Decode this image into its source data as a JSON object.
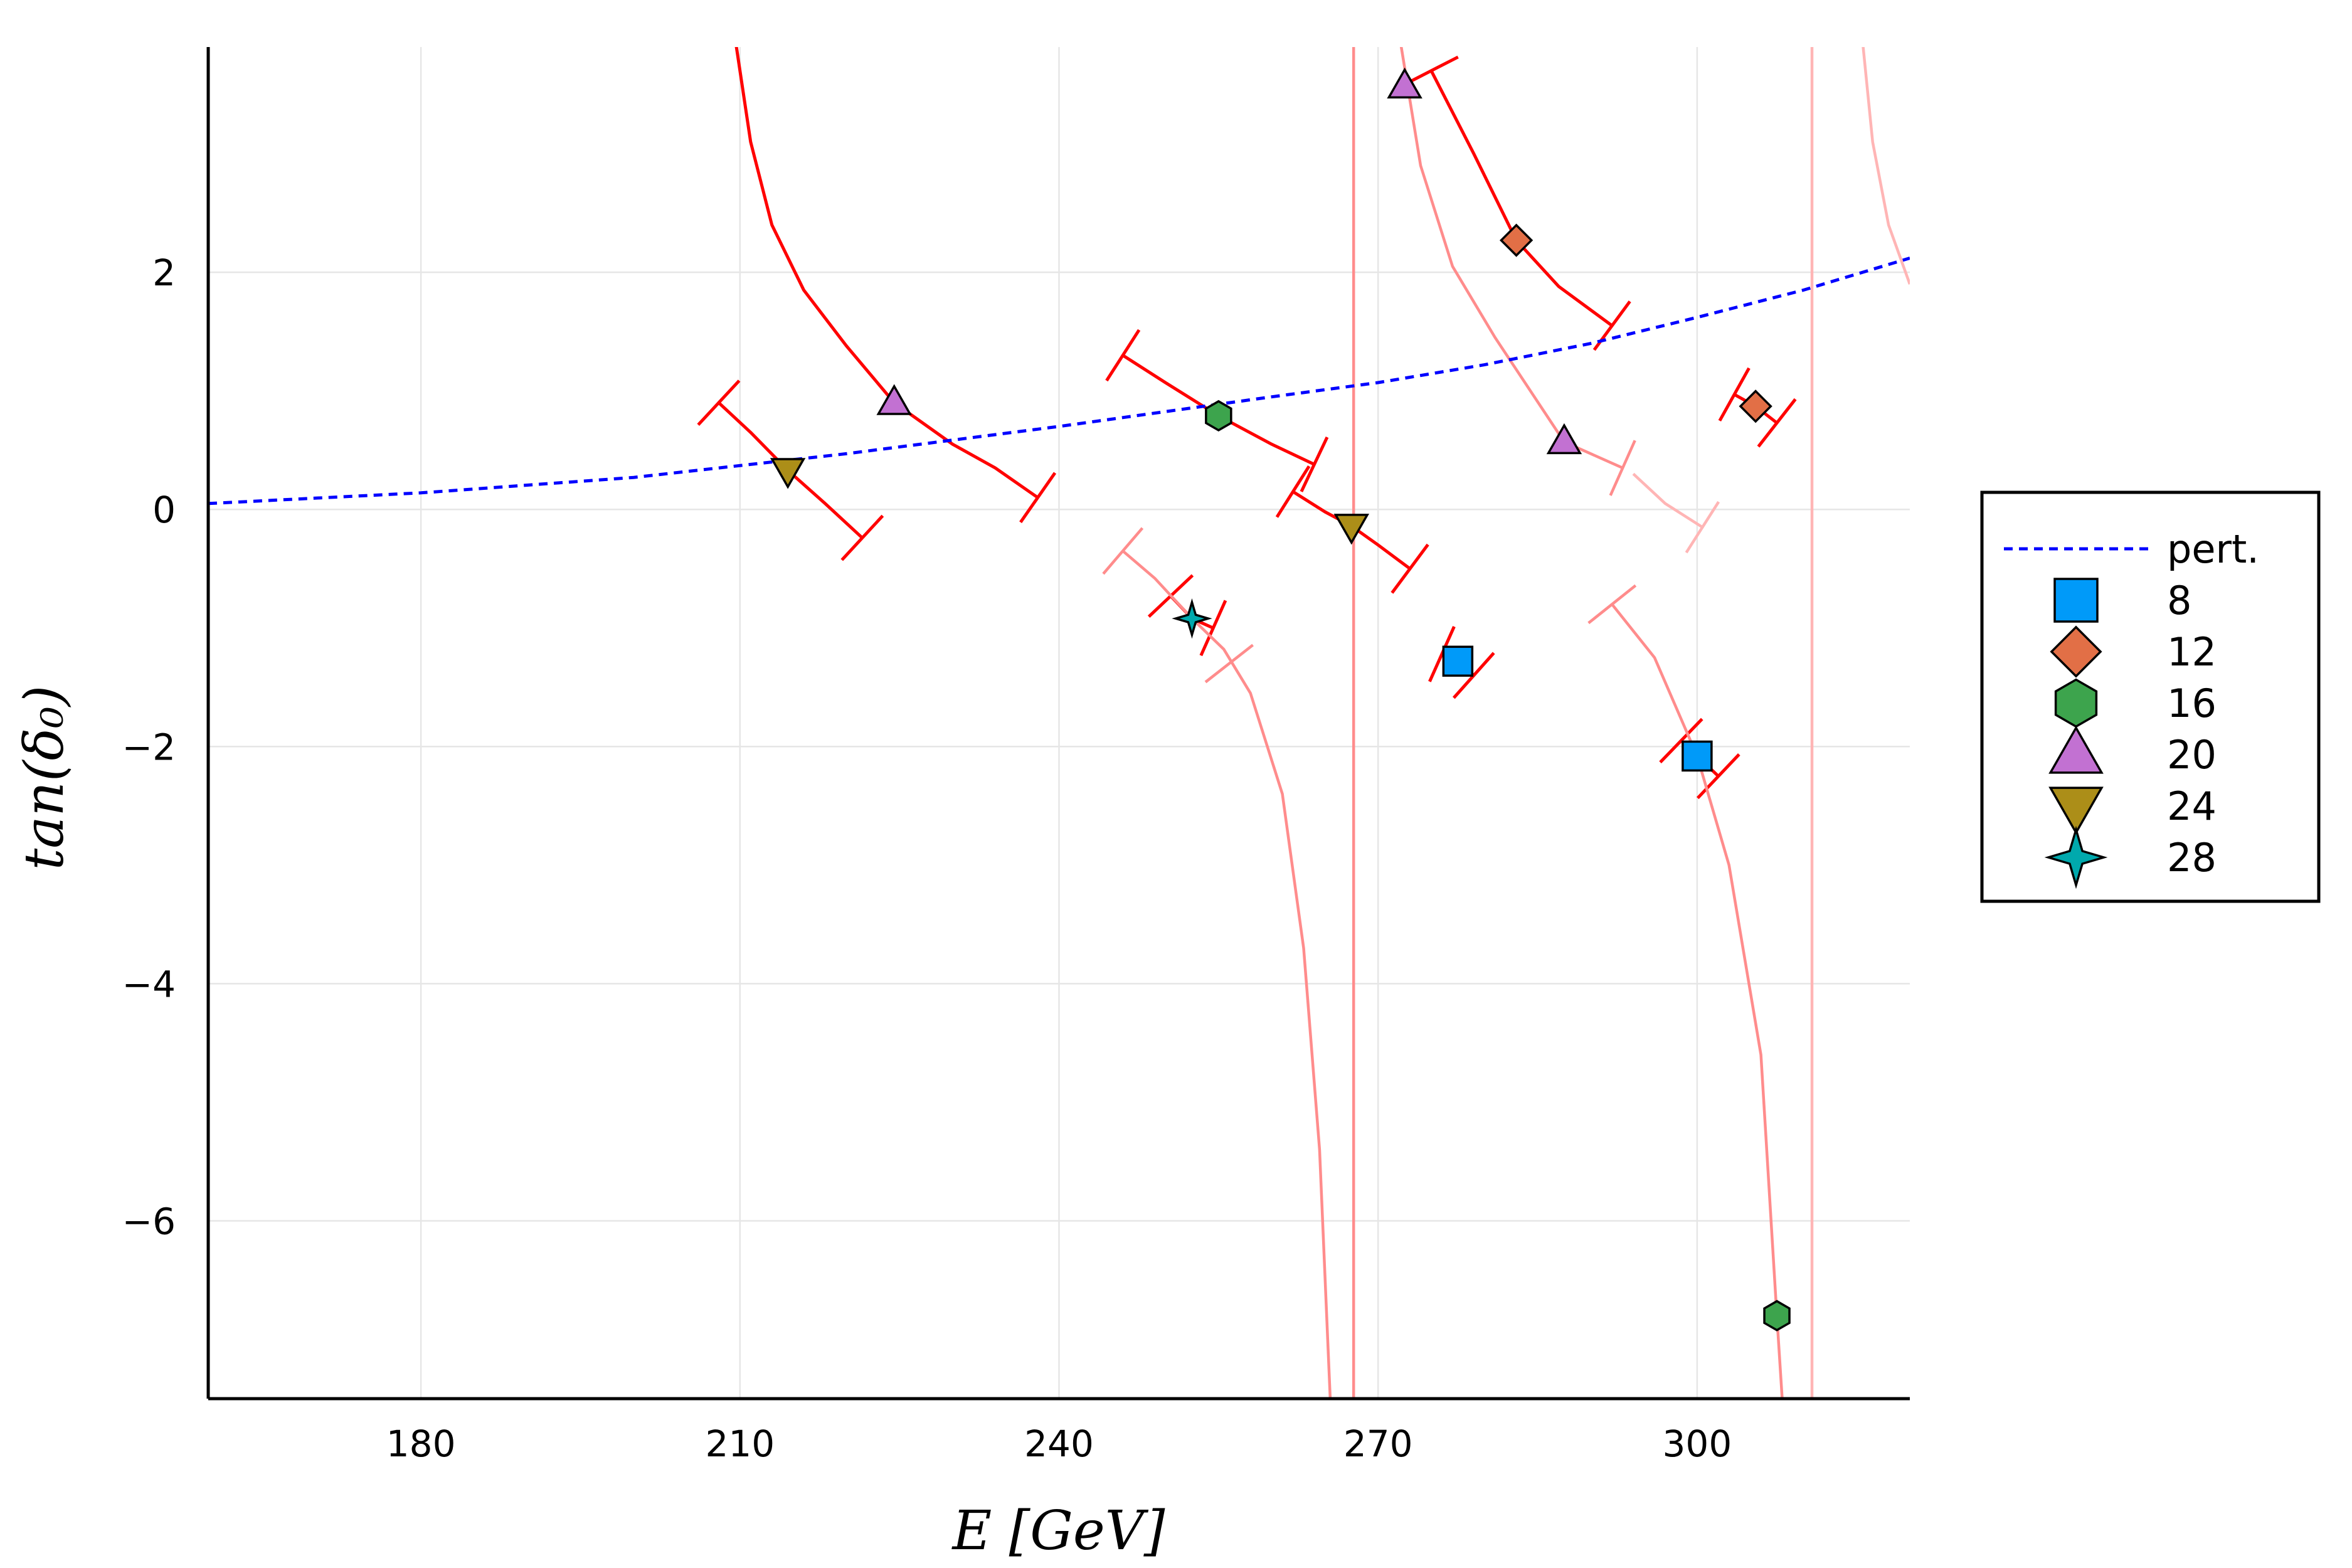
{
  "chart_data": {
    "type": "scatter",
    "title": "",
    "xlabel": "E  [GeV]",
    "ylabel": "tan(δ₀)",
    "xlim": [
      160,
      320
    ],
    "ylim": [
      -7.5,
      3.9
    ],
    "xticks": [
      180,
      210,
      240,
      270,
      300
    ],
    "yticks": [
      2,
      0,
      -2,
      -4,
      -6
    ],
    "ytick_labels": [
      "2",
      "0",
      "−2",
      "−4",
      "−6"
    ],
    "grid": true,
    "legend_position": "right",
    "colors": {
      "pert": "#0000ff",
      "curve": "#ff0000",
      "curve_faint": "#ff8c8c",
      "curve_fainter": "#ffb5b5",
      "8": "#009af9",
      "12": "#e26f46",
      "16": "#3da44d",
      "20": "#c271d2",
      "24": "#ac8e18",
      "28": "#00a9ad"
    },
    "legend": [
      {
        "label": "pert.",
        "key": "pert",
        "marker": "dash"
      },
      {
        "label": "8",
        "key": "8",
        "marker": "square"
      },
      {
        "label": "12",
        "key": "12",
        "marker": "diamond"
      },
      {
        "label": "16",
        "key": "16",
        "marker": "hexagon"
      },
      {
        "label": "20",
        "key": "20",
        "marker": "triangle-up"
      },
      {
        "label": "24",
        "key": "24",
        "marker": "triangle-down"
      },
      {
        "label": "28",
        "key": "28",
        "marker": "star4"
      }
    ],
    "pert_curve": [
      [
        160,
        0.05
      ],
      [
        180,
        0.14
      ],
      [
        200,
        0.27
      ],
      [
        220,
        0.47
      ],
      [
        240,
        0.7
      ],
      [
        260,
        0.95
      ],
      [
        270,
        1.07
      ],
      [
        280,
        1.22
      ],
      [
        290,
        1.4
      ],
      [
        300,
        1.62
      ],
      [
        310,
        1.85
      ],
      [
        320,
        2.12
      ]
    ],
    "points": [
      {
        "series": "8",
        "x": 277.5,
        "y": -1.28
      },
      {
        "series": "8",
        "x": 300.0,
        "y": -2.08
      },
      {
        "series": "12",
        "x": 283.0,
        "y": 2.27
      },
      {
        "series": "12",
        "x": 305.5,
        "y": 0.87
      },
      {
        "series": "16",
        "x": 255.0,
        "y": 0.79
      },
      {
        "series": "16",
        "x": 307.5,
        "y": -6.8
      },
      {
        "series": "20",
        "x": 224.5,
        "y": 0.9
      },
      {
        "series": "20",
        "x": 272.5,
        "y": 3.57
      },
      {
        "series": "20",
        "x": 287.5,
        "y": 0.57
      },
      {
        "series": "24",
        "x": 214.5,
        "y": 0.33
      },
      {
        "series": "24",
        "x": 267.5,
        "y": -0.14
      },
      {
        "series": "28",
        "x": 252.5,
        "y": -0.92
      }
    ],
    "curves": [
      {
        "style": "strong",
        "points": [
          [
            209.5,
            4.0
          ],
          [
            211,
            3.1
          ],
          [
            213,
            2.4
          ],
          [
            216,
            1.85
          ],
          [
            220,
            1.38
          ],
          [
            224.5,
            0.9
          ],
          [
            230,
            0.55
          ],
          [
            234,
            0.35
          ],
          [
            238,
            0.1
          ]
        ],
        "caps": [
          [
            238,
            0.1
          ]
        ]
      },
      {
        "style": "strong",
        "points": [
          [
            208,
            0.9
          ],
          [
            211,
            0.65
          ],
          [
            214.5,
            0.33
          ],
          [
            218,
            0.05
          ],
          [
            221.5,
            -0.24
          ]
        ],
        "caps": [
          [
            208,
            0.9
          ],
          [
            221.5,
            -0.24
          ]
        ]
      },
      {
        "style": "strong",
        "points": [
          [
            246,
            1.3
          ],
          [
            250,
            1.07
          ],
          [
            255,
            0.79
          ],
          [
            260,
            0.55
          ],
          [
            264,
            0.38
          ]
        ],
        "caps": [
          [
            246,
            1.3
          ],
          [
            264,
            0.38
          ]
        ]
      },
      {
        "style": "strong",
        "points": [
          [
            262,
            0.15
          ],
          [
            265,
            -0.02
          ],
          [
            267.5,
            -0.14
          ],
          [
            270,
            -0.3
          ],
          [
            273,
            -0.5
          ]
        ],
        "caps": [
          [
            262,
            0.15
          ],
          [
            273,
            -0.5
          ]
        ]
      },
      {
        "style": "strong",
        "points": [
          [
            250.5,
            -0.73
          ],
          [
            252.5,
            -0.92
          ],
          [
            254.5,
            -1.0
          ]
        ],
        "caps": [
          [
            250.5,
            -0.73
          ],
          [
            254.5,
            -1.0
          ]
        ]
      },
      {
        "style": "strong",
        "points": [
          [
            276,
            -1.22
          ],
          [
            277.5,
            -1.28
          ],
          [
            279,
            -1.4
          ]
        ],
        "caps": [
          [
            276,
            -1.22
          ],
          [
            279,
            -1.4
          ]
        ]
      },
      {
        "style": "strong",
        "points": [
          [
            298.5,
            -1.95
          ],
          [
            300.0,
            -2.08
          ],
          [
            302.0,
            -2.25
          ]
        ],
        "caps": [
          [
            298.5,
            -1.95
          ],
          [
            302.0,
            -2.25
          ]
        ]
      },
      {
        "style": "strong",
        "points": [
          [
            275,
            3.7
          ],
          [
            279,
            3.0
          ],
          [
            283,
            2.27
          ],
          [
            287,
            1.88
          ],
          [
            292,
            1.55
          ]
        ],
        "caps": [
          [
            275,
            3.7
          ],
          [
            292,
            1.55
          ]
        ]
      },
      {
        "style": "strong",
        "points": [
          [
            303.5,
            0.97
          ],
          [
            305.5,
            0.87
          ],
          [
            307.5,
            0.73
          ]
        ],
        "caps": [
          [
            303.5,
            0.97
          ],
          [
            307.5,
            0.73
          ]
        ]
      },
      {
        "style": "faint",
        "points": [
          [
            246,
            -0.35
          ],
          [
            249,
            -0.58
          ],
          [
            252.5,
            -0.92
          ],
          [
            255.5,
            -1.18
          ],
          [
            258,
            -1.55
          ],
          [
            261,
            -2.4
          ],
          [
            263,
            -3.7
          ],
          [
            264.5,
            -5.4
          ],
          [
            265.5,
            -7.5
          ]
        ],
        "caps": [
          [
            246,
            -0.35
          ],
          [
            256,
            -1.3
          ]
        ]
      },
      {
        "style": "faint",
        "points": [
          [
            272,
            4.0
          ],
          [
            274,
            2.9
          ],
          [
            277,
            2.05
          ],
          [
            281,
            1.45
          ],
          [
            287.5,
            0.57
          ],
          [
            293,
            0.35
          ]
        ],
        "caps": [
          [
            293,
            0.35
          ]
        ]
      },
      {
        "style": "faint",
        "points": [
          [
            292,
            -0.8
          ],
          [
            296,
            -1.25
          ],
          [
            300,
            -2.08
          ],
          [
            303,
            -3.0
          ],
          [
            306,
            -4.6
          ],
          [
            307.5,
            -6.8
          ],
          [
            308,
            -7.5
          ]
        ],
        "caps": [
          [
            292,
            -0.8
          ]
        ]
      },
      {
        "style": "fainter",
        "points": [
          [
            294,
            0.3
          ],
          [
            297,
            0.05
          ],
          [
            300.5,
            -0.15
          ]
        ],
        "caps": [
          [
            300.5,
            -0.15
          ]
        ]
      },
      {
        "style": "fainter",
        "points": [
          [
            315.5,
            4.0
          ],
          [
            316.5,
            3.1
          ],
          [
            318,
            2.4
          ],
          [
            320,
            1.9
          ]
        ],
        "caps": []
      }
    ],
    "vertical_lines": [
      {
        "x": 267.7,
        "style": "faint"
      },
      {
        "x": 310.8,
        "style": "fainter"
      }
    ]
  }
}
